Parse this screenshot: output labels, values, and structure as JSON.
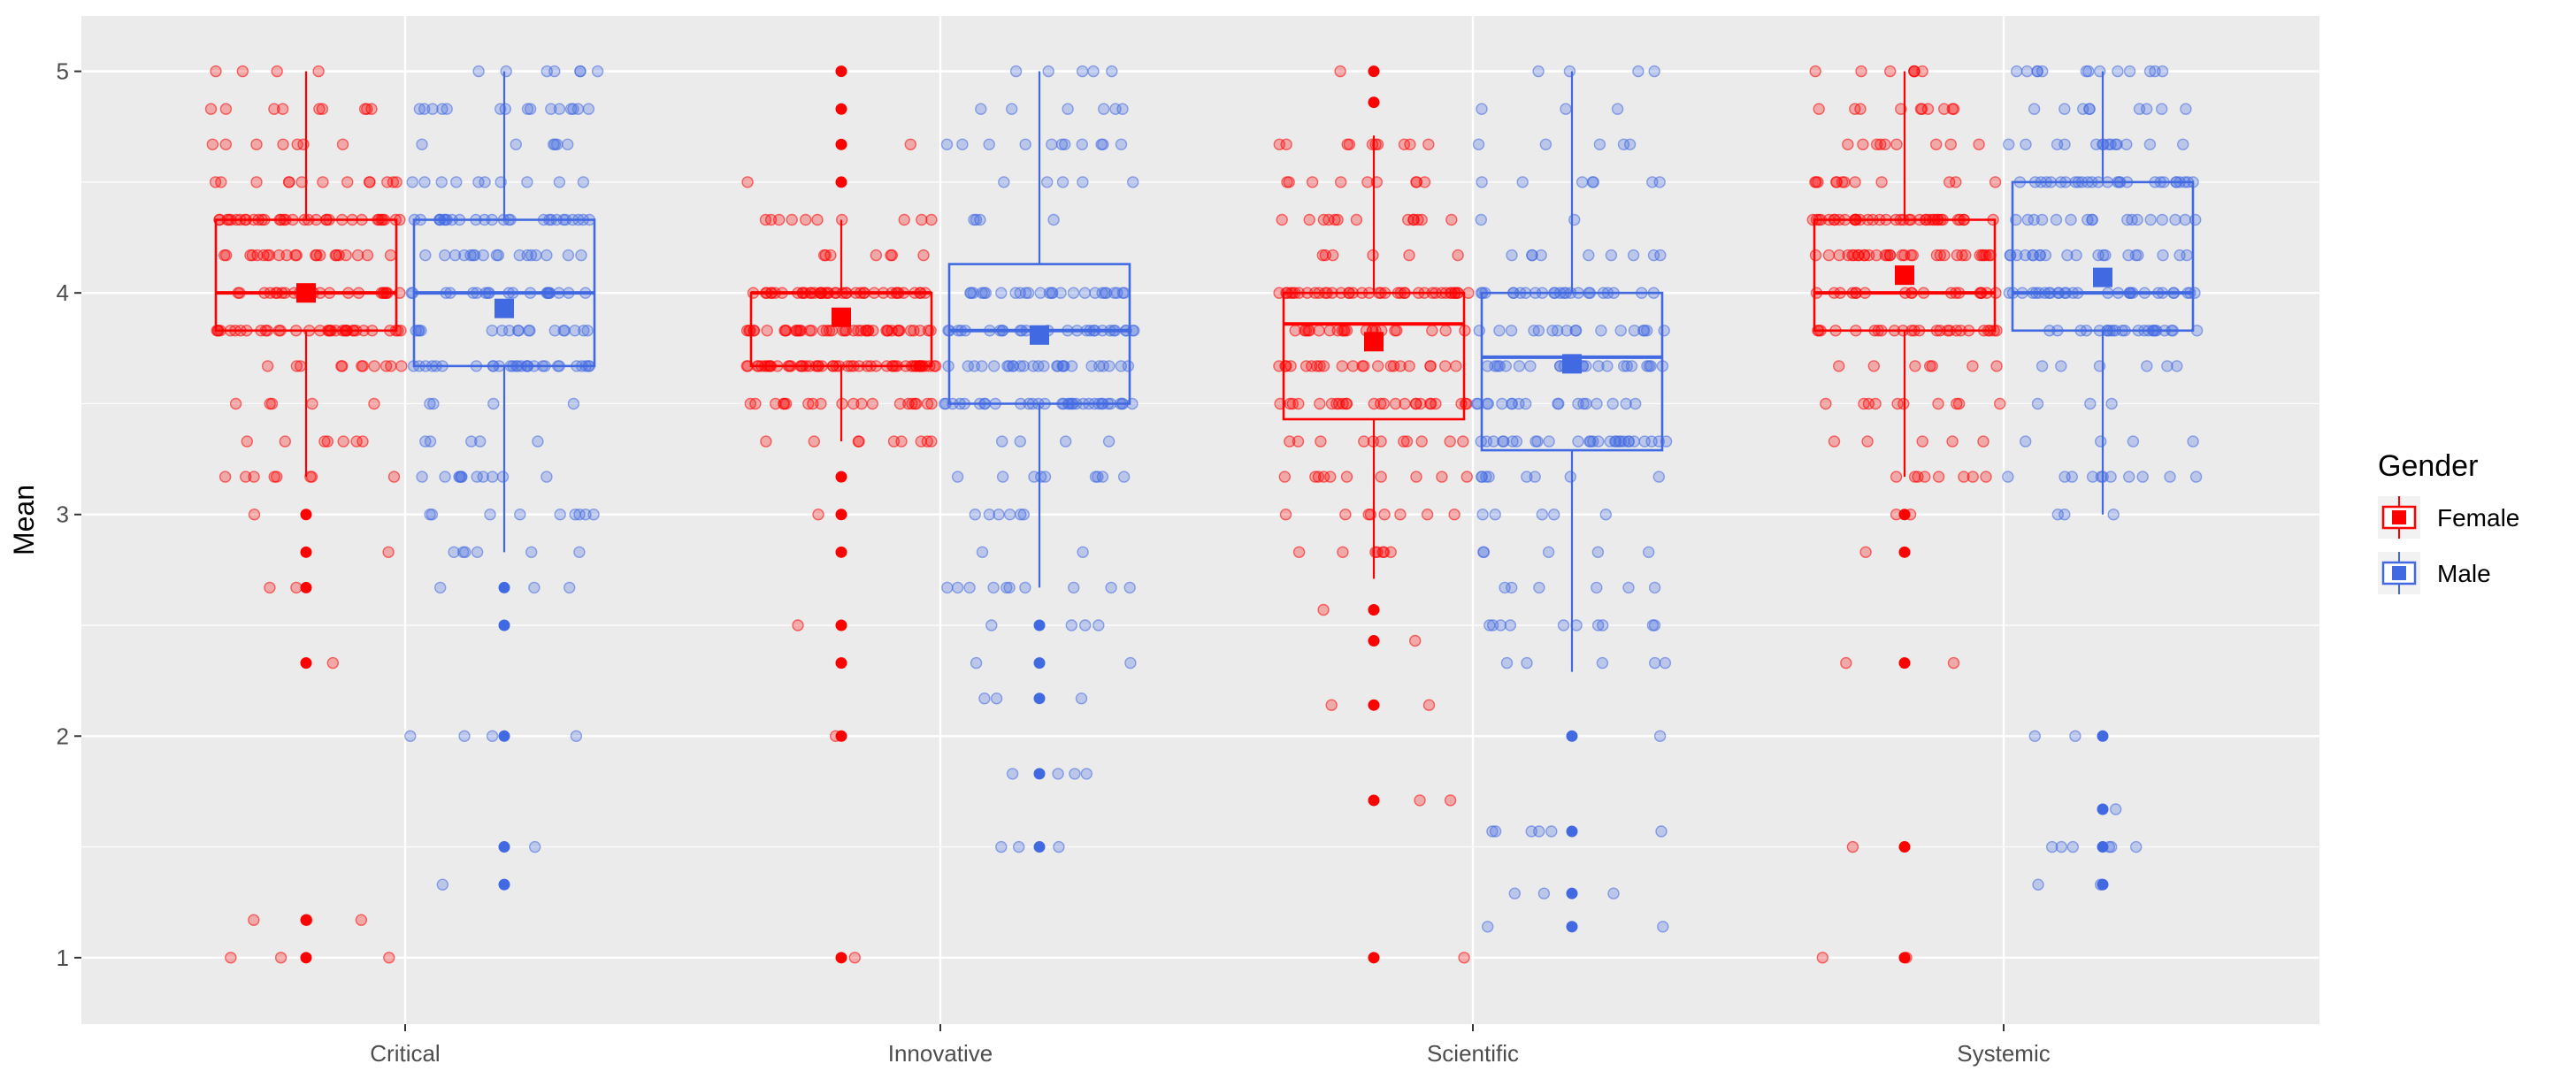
{
  "chart_data": {
    "type": "boxplot",
    "title": "",
    "xlabel": "",
    "ylabel": "Mean",
    "ylim": [
      0.7,
      5.25
    ],
    "yticks": [
      1,
      2,
      3,
      4,
      5
    ],
    "grid": true,
    "legend_position": "right",
    "categories": [
      "Critical",
      "Innovative",
      "Scientific",
      "Systemic"
    ],
    "legend": {
      "title": "Gender",
      "entries": [
        {
          "name": "Female",
          "color": "#ff0000"
        },
        {
          "name": "Male",
          "color": "#4169e1"
        }
      ]
    },
    "series": [
      {
        "name": "Female",
        "color": "#ff0000",
        "boxes": [
          {
            "category": "Critical",
            "whisker_low": 3.17,
            "q1": 3.83,
            "median": 4.0,
            "q3": 4.33,
            "whisker_high": 5.0,
            "mean": 4.0,
            "outliers": [
              3.0,
              2.83,
              2.67,
              2.33,
              1.17,
              1.0
            ]
          },
          {
            "category": "Innovative",
            "whisker_low": 3.33,
            "q1": 3.67,
            "median": 4.0,
            "q3": 4.0,
            "whisker_high": 4.33,
            "mean": 3.89,
            "outliers": [
              5.0,
              4.83,
              4.67,
              4.5,
              3.17,
              3.0,
              2.83,
              2.5,
              2.33,
              2.0,
              1.0
            ]
          },
          {
            "category": "Scientific",
            "whisker_low": 2.71,
            "q1": 3.43,
            "median": 3.86,
            "q3": 4.0,
            "whisker_high": 4.71,
            "mean": 3.78,
            "outliers": [
              5.0,
              4.86,
              2.57,
              2.43,
              2.14,
              1.71,
              1.0
            ]
          },
          {
            "category": "Systemic",
            "whisker_low": 3.17,
            "q1": 3.83,
            "median": 4.0,
            "q3": 4.33,
            "whisker_high": 5.0,
            "mean": 4.08,
            "outliers": [
              3.0,
              2.83,
              2.33,
              1.5,
              1.0
            ]
          }
        ]
      },
      {
        "name": "Male",
        "color": "#4169e1",
        "boxes": [
          {
            "category": "Critical",
            "whisker_low": 2.83,
            "q1": 3.67,
            "median": 4.0,
            "q3": 4.33,
            "whisker_high": 5.0,
            "mean": 3.93,
            "outliers": [
              2.67,
              2.5,
              2.0,
              1.5,
              1.33
            ]
          },
          {
            "category": "Innovative",
            "whisker_low": 2.67,
            "q1": 3.5,
            "median": 3.83,
            "q3": 4.13,
            "whisker_high": 5.0,
            "mean": 3.81,
            "outliers": [
              2.5,
              2.33,
              2.17,
              1.83,
              1.5
            ]
          },
          {
            "category": "Scientific",
            "whisker_low": 2.29,
            "q1": 3.29,
            "median": 3.71,
            "q3": 4.0,
            "whisker_high": 5.0,
            "mean": 3.68,
            "outliers": [
              2.0,
              1.57,
              1.29,
              1.14
            ]
          },
          {
            "category": "Systemic",
            "whisker_low": 3.0,
            "q1": 3.83,
            "median": 4.0,
            "q3": 4.5,
            "whisker_high": 5.0,
            "mean": 4.07,
            "outliers": [
              2.0,
              1.67,
              1.5,
              1.33
            ]
          }
        ]
      }
    ]
  }
}
